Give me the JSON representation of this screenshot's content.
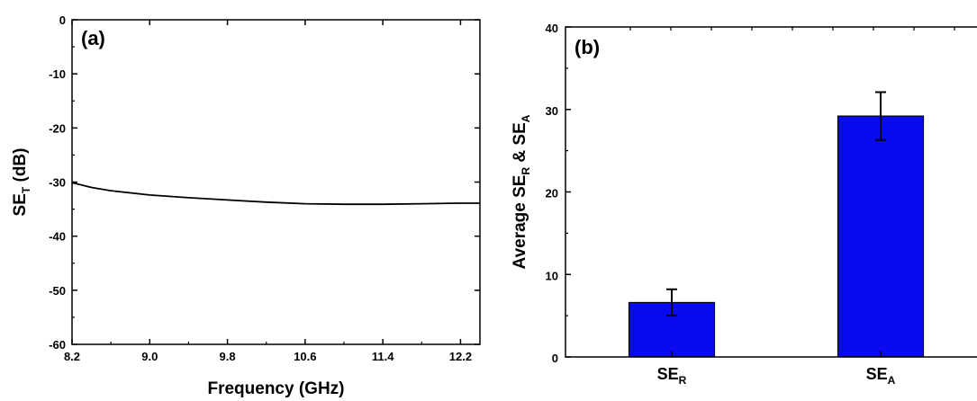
{
  "chart_data": [
    {
      "type": "line",
      "panel_label": "(a)",
      "xlabel": "Frequency (GHz)",
      "ylabel_main": "SE",
      "ylabel_sub": "T",
      "ylabel_tail": " (dB)",
      "xlim": [
        8.2,
        12.4
      ],
      "ylim": [
        -60,
        0
      ],
      "xticks": [
        8.2,
        9.0,
        9.8,
        10.6,
        11.4,
        12.2
      ],
      "xtick_labels": [
        "8.2",
        "9.0",
        "9.8",
        "10.6",
        "11.4",
        "12.2"
      ],
      "yticks": [
        0,
        -10,
        -20,
        -30,
        -40,
        -50,
        -60
      ],
      "ytick_labels": [
        "0",
        "-10",
        "-20",
        "-30",
        "-40",
        "-50",
        "-60"
      ],
      "grid": false,
      "series": [
        {
          "color": "#000000",
          "x": [
            8.2,
            8.4,
            8.6,
            8.8,
            9.0,
            9.4,
            9.8,
            10.2,
            10.6,
            11.0,
            11.4,
            11.8,
            12.2,
            12.4
          ],
          "y": [
            -30.1,
            -31.0,
            -31.6,
            -32.0,
            -32.4,
            -32.9,
            -33.3,
            -33.7,
            -34.0,
            -34.1,
            -34.1,
            -34.0,
            -33.9,
            -33.9
          ]
        }
      ]
    },
    {
      "type": "bar",
      "panel_label": "(b)",
      "ylabel_main": "Average SE",
      "ylabel_sub1": "R",
      "ylabel_mid": " & SE",
      "ylabel_sub2": "A",
      "categories": [
        {
          "main": "SE",
          "sub": "R"
        },
        {
          "main": "SE",
          "sub": "A"
        }
      ],
      "values": [
        6.6,
        29.2
      ],
      "errors": [
        1.6,
        2.9
      ],
      "ylim": [
        0,
        40
      ],
      "yticks": [
        0,
        10,
        20,
        30,
        40
      ],
      "ytick_labels": [
        "0",
        "10",
        "20",
        "30",
        "40"
      ],
      "bar_color": "#0a0af0",
      "grid": false
    }
  ]
}
